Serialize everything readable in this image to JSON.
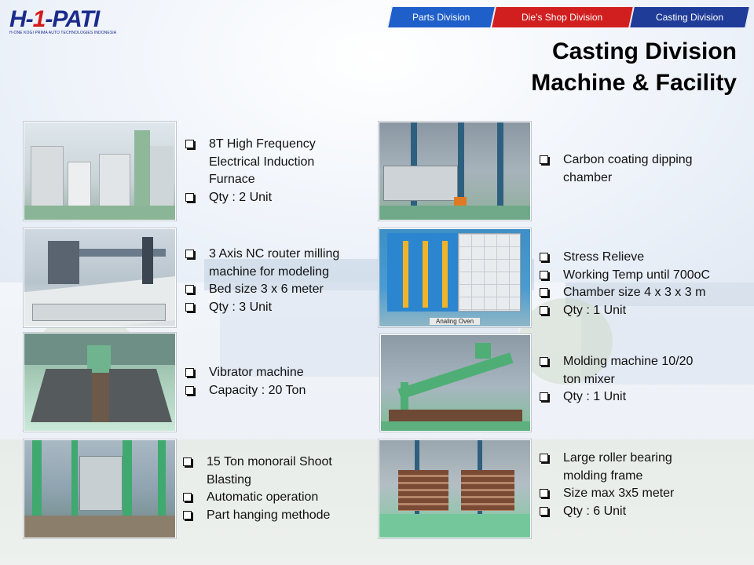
{
  "logo": {
    "brand_prefix": "H-",
    "brand_mark": "1",
    "brand_name": "-PATI",
    "tagline": "H-ONE KOGI PRIMA AUTO TECHNOLOGIES INDONESIA"
  },
  "nav": {
    "tabs": [
      {
        "label": "Parts Division",
        "color": "#1f5fc9"
      },
      {
        "label": "Die’s Shop Division",
        "color": "#d11f1f"
      },
      {
        "label": "Casting Division",
        "color": "#1f3c99"
      }
    ]
  },
  "page": {
    "title_line1": "Casting Division",
    "title_line2": "Machine & Facility"
  },
  "equipment": {
    "left": [
      {
        "photo_icon": "induction-furnace-photo",
        "lines": [
          "8T High Frequency Electrical Induction Furnace",
          "Qty : 2 Unit"
        ]
      },
      {
        "photo_icon": "nc-router-photo",
        "lines": [
          "3 Axis NC router milling machine for modeling",
          "Bed size 3 x 6 meter",
          "Qty : 3 Unit"
        ]
      },
      {
        "photo_icon": "vibrator-machine-photo",
        "lines": [
          "Vibrator machine",
          "Capacity : 20 Ton"
        ]
      },
      {
        "photo_icon": "shoot-blasting-photo",
        "lines": [
          "15 Ton monorail Shoot Blasting",
          "Automatic operation",
          "Part hanging methode"
        ]
      }
    ],
    "right": [
      {
        "photo_icon": "dipping-chamber-photo",
        "lines": [
          "Carbon coating dipping chamber"
        ]
      },
      {
        "photo_icon": "annealing-oven-photo",
        "caption": "Analing Oven",
        "lines": [
          "Stress Relieve",
          "Working Temp until 700oC",
          "Chamber size 4 x 3 x 3 m",
          "Qty : 1 Unit"
        ]
      },
      {
        "photo_icon": "molding-machine-photo",
        "lines": [
          "Molding machine 10/20 ton mixer",
          "Qty : 1 Unit"
        ]
      },
      {
        "photo_icon": "molding-frame-photo",
        "lines": [
          "Large roller bearing molding frame",
          "Size max 3x5 meter",
          "Qty : 6 Unit"
        ]
      }
    ]
  }
}
